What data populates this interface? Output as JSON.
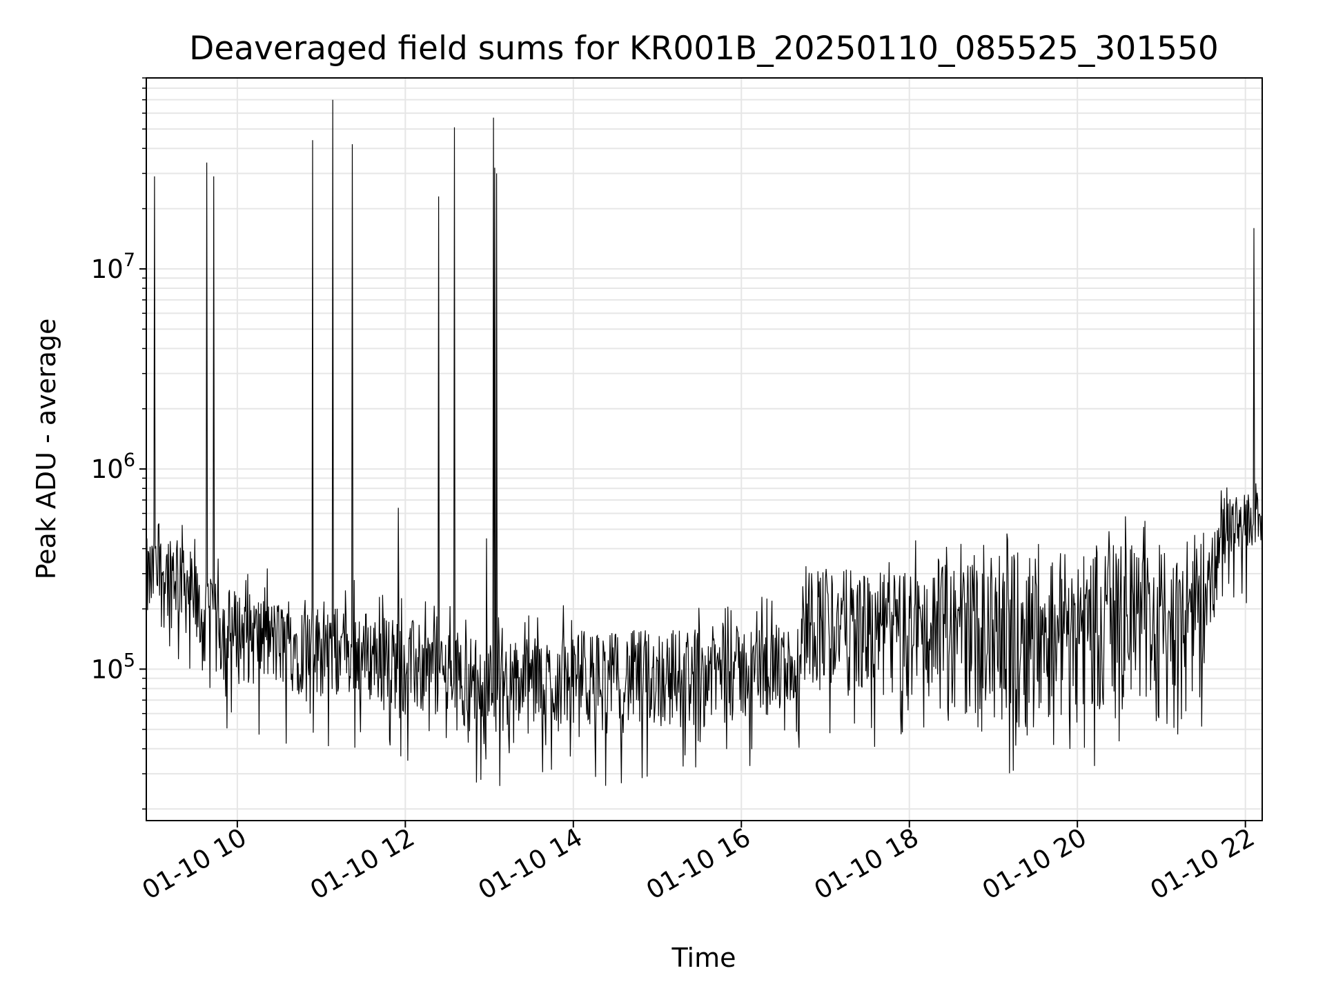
{
  "chart_data": {
    "type": "line",
    "title": "Deaveraged field sums for KR001B_20250110_085525_301550",
    "xlabel": "Time",
    "ylabel": "Peak ADU - average",
    "y_scale": "log",
    "ylim": [
      17500,
      90000000
    ],
    "xlim": [
      "2025-01-10 08:55",
      "2025-01-10 22:12"
    ],
    "grid": true,
    "line_color": "#000000",
    "x_ticks": [
      {
        "t": "2025-01-10 10:00",
        "label": "01-10 10"
      },
      {
        "t": "2025-01-10 12:00",
        "label": "01-10 12"
      },
      {
        "t": "2025-01-10 14:00",
        "label": "01-10 14"
      },
      {
        "t": "2025-01-10 16:00",
        "label": "01-10 16"
      },
      {
        "t": "2025-01-10 18:00",
        "label": "01-10 18"
      },
      {
        "t": "2025-01-10 20:00",
        "label": "01-10 20"
      },
      {
        "t": "2025-01-10 22:00",
        "label": "01-10 22"
      }
    ],
    "y_ticks": [
      {
        "value": 100000,
        "base": "10",
        "exp": "5"
      },
      {
        "value": 1000000,
        "base": "10",
        "exp": "6"
      },
      {
        "value": 10000000,
        "base": "10",
        "exp": "7"
      }
    ],
    "envelope": [
      {
        "t": "2025-01-10 08:55",
        "low": 150000,
        "high": 450000
      },
      {
        "t": "2025-01-10 09:20",
        "low": 160000,
        "high": 550000
      },
      {
        "t": "2025-01-10 09:35",
        "low": 90000,
        "high": 280000
      },
      {
        "t": "2025-01-10 10:30",
        "low": 75000,
        "high": 220000
      },
      {
        "t": "2025-01-10 11:30",
        "low": 65000,
        "high": 200000
      },
      {
        "t": "2025-01-10 12:30",
        "low": 50000,
        "high": 160000
      },
      {
        "t": "2025-01-10 13:00",
        "low": 45000,
        "high": 140000
      },
      {
        "t": "2025-01-10 14:00",
        "low": 45000,
        "high": 150000
      },
      {
        "t": "2025-01-10 15:00",
        "low": 48000,
        "high": 160000
      },
      {
        "t": "2025-01-10 16:40",
        "low": 55000,
        "high": 170000
      },
      {
        "t": "2025-01-10 16:45",
        "low": 80000,
        "high": 350000
      },
      {
        "t": "2025-01-10 17:30",
        "low": 70000,
        "high": 300000
      },
      {
        "t": "2025-01-10 18:30",
        "low": 60000,
        "high": 330000
      },
      {
        "t": "2025-01-10 19:30",
        "low": 50000,
        "high": 400000
      },
      {
        "t": "2025-01-10 20:30",
        "low": 55000,
        "high": 420000
      },
      {
        "t": "2025-01-10 21:30",
        "low": 90000,
        "high": 350000
      },
      {
        "t": "2025-01-10 21:45",
        "low": 300000,
        "high": 700000
      },
      {
        "t": "2025-01-10 22:12",
        "low": 420000,
        "high": 800000
      }
    ],
    "spikes": [
      {
        "t": "2025-01-10 09:01",
        "value": 29000000
      },
      {
        "t": "2025-01-10 09:38",
        "value": 34000000
      },
      {
        "t": "2025-01-10 09:43",
        "value": 29000000
      },
      {
        "t": "2025-01-10 10:54",
        "value": 44000000
      },
      {
        "t": "2025-01-10 11:08",
        "value": 70000000
      },
      {
        "t": "2025-01-10 11:22",
        "value": 42000000
      },
      {
        "t": "2025-01-10 11:55",
        "value": 640000
      },
      {
        "t": "2025-01-10 12:24",
        "value": 23000000
      },
      {
        "t": "2025-01-10 12:35",
        "value": 51000000
      },
      {
        "t": "2025-01-10 12:58",
        "value": 450000
      },
      {
        "t": "2025-01-10 13:03",
        "value": 57000000
      },
      {
        "t": "2025-01-10 13:04",
        "value": 32000000
      },
      {
        "t": "2025-01-10 13:05",
        "value": 30000000
      },
      {
        "t": "2025-01-10 22:06",
        "value": 16000000
      }
    ]
  }
}
